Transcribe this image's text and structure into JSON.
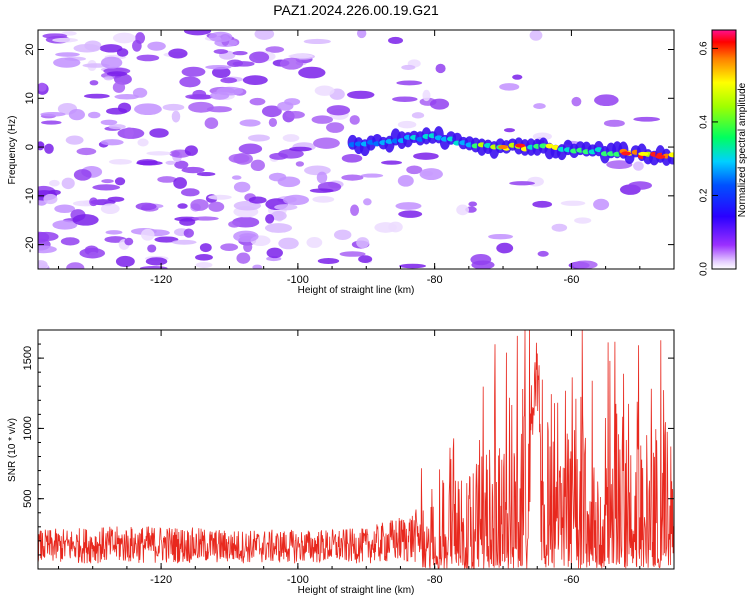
{
  "title": "PAZ1.2024.226.00.19.G21",
  "chart_data": [
    {
      "type": "heatmap",
      "xlabel": "Height of straight line (km)",
      "ylabel": "Frequency (Hz)",
      "xlim": [
        -138,
        -45
      ],
      "ylim": [
        -25,
        24
      ],
      "xticks": [
        -120,
        -100,
        -80,
        -60
      ],
      "yticks": [
        -20,
        -10,
        0,
        10,
        20
      ],
      "colorbar": {
        "label": "Normalized spectral amplitude",
        "range": [
          0,
          0.65
        ],
        "ticks": [
          0.0,
          0.2,
          0.4,
          0.6
        ],
        "tick_labels": [
          "0.0",
          "0.2",
          "0.4",
          "0.6"
        ]
      },
      "ridge": {
        "description_points_x": [
          -90,
          -85,
          -80,
          -75,
          -70,
          -65,
          -60,
          -55,
          -50,
          -45
        ],
        "frequency_hz": [
          0.5,
          1.5,
          2,
          0.5,
          0,
          0,
          -0.5,
          -1,
          -1.5,
          -2
        ],
        "peak_amplitude": [
          0.2,
          0.25,
          0.3,
          0.35,
          0.45,
          0.5,
          0.42,
          0.45,
          0.6,
          0.62
        ]
      },
      "grid": false
    },
    {
      "type": "line",
      "xlabel": "Height of straight line (km)",
      "ylabel": "SNR (10 * v/v)",
      "xlim": [
        -138,
        -45
      ],
      "ylim": [
        0,
        1700
      ],
      "xticks": [
        -120,
        -100,
        -80,
        -60
      ],
      "yticks": [
        500,
        1000,
        1500
      ],
      "series_color": "#e8281e",
      "envelope": {
        "x": [
          -138,
          -130,
          -120,
          -110,
          -100,
          -90,
          -85,
          -80,
          -78,
          -75,
          -72,
          -70,
          -68,
          -66,
          -65,
          -64,
          -62,
          -60,
          -58,
          -55,
          -52,
          -50,
          -48,
          -46,
          -45
        ],
        "max_snr": [
          300,
          320,
          330,
          300,
          300,
          310,
          400,
          500,
          800,
          750,
          900,
          1100,
          1150,
          1350,
          1700,
          1200,
          900,
          1000,
          1050,
          1000,
          1150,
          1250,
          1200,
          1050,
          1000
        ]
      },
      "grid": false
    }
  ]
}
